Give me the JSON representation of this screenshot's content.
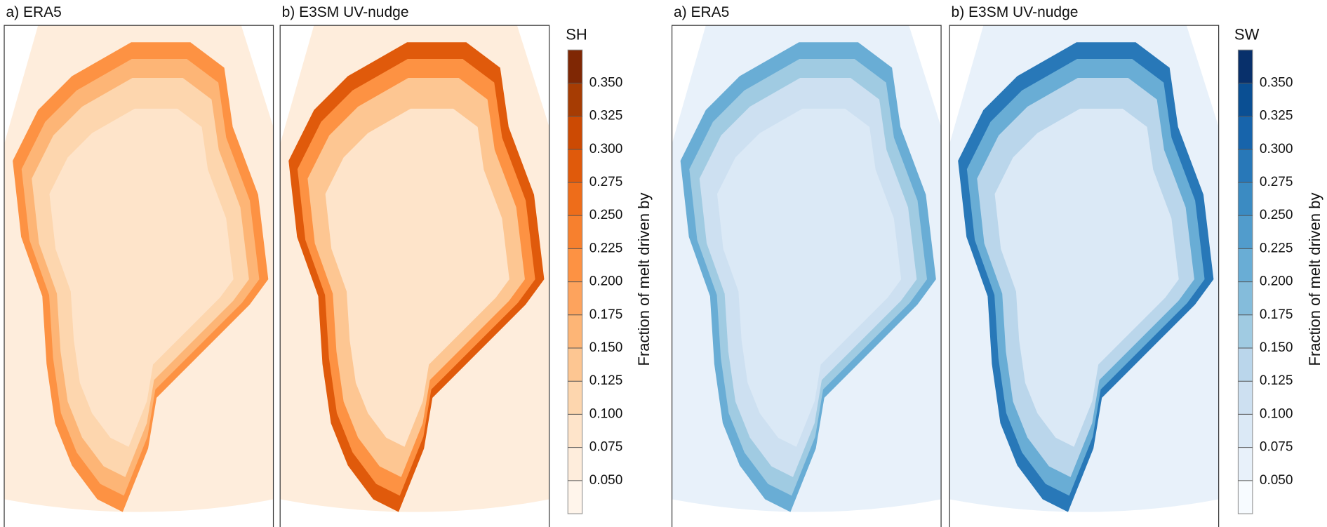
{
  "panels": [
    {
      "title": "a) ERA5"
    },
    {
      "title": "b) E3SM UV-nudge"
    },
    {
      "title": "a) ERA5"
    },
    {
      "title": "b) E3SM UV-nudge"
    }
  ],
  "colorbars": [
    {
      "title": "SH",
      "label": "Fraction of melt driven by",
      "lim": [
        0.025,
        0.375
      ],
      "ticks": [
        {
          "value": 0.05,
          "label": "0.050"
        },
        {
          "value": 0.075,
          "label": "0.075"
        },
        {
          "value": 0.1,
          "label": "0.100"
        },
        {
          "value": 0.125,
          "label": "0.125"
        },
        {
          "value": 0.15,
          "label": "0.150"
        },
        {
          "value": 0.175,
          "label": "0.175"
        },
        {
          "value": 0.2,
          "label": "0.200"
        },
        {
          "value": 0.225,
          "label": "0.225"
        },
        {
          "value": 0.25,
          "label": "0.250"
        },
        {
          "value": 0.275,
          "label": "0.275"
        },
        {
          "value": 0.3,
          "label": "0.300"
        },
        {
          "value": 0.325,
          "label": "0.325"
        },
        {
          "value": 0.35,
          "label": "0.350"
        }
      ],
      "colors": [
        "#fff5eb",
        "#feeddc",
        "#fee4ca",
        "#fdd6ae",
        "#fdc692",
        "#fdb576",
        "#fda35d",
        "#fd9243",
        "#f7802e",
        "#ee6d1a",
        "#e05a0b",
        "#cc4a03",
        "#a63c03",
        "#7f2704"
      ]
    },
    {
      "title": "SW",
      "label": "Fraction of melt driven by",
      "lim": [
        0.025,
        0.375
      ],
      "ticks": [
        {
          "value": 0.05,
          "label": "0.050"
        },
        {
          "value": 0.075,
          "label": "0.075"
        },
        {
          "value": 0.1,
          "label": "0.100"
        },
        {
          "value": 0.125,
          "label": "0.125"
        },
        {
          "value": 0.15,
          "label": "0.150"
        },
        {
          "value": 0.175,
          "label": "0.175"
        },
        {
          "value": 0.2,
          "label": "0.200"
        },
        {
          "value": 0.225,
          "label": "0.225"
        },
        {
          "value": 0.25,
          "label": "0.250"
        },
        {
          "value": 0.275,
          "label": "0.275"
        },
        {
          "value": 0.3,
          "label": "0.300"
        },
        {
          "value": 0.325,
          "label": "0.325"
        },
        {
          "value": 0.35,
          "label": "0.350"
        }
      ],
      "colors": [
        "#f7fbff",
        "#e8f1fa",
        "#dbe9f6",
        "#cde0f1",
        "#bad6eb",
        "#a0cbe2",
        "#84bcdb",
        "#69add5",
        "#519ccc",
        "#3b8bc2",
        "#2878b8",
        "#1764ab",
        "#0a4f93",
        "#08306b"
      ]
    }
  ]
}
